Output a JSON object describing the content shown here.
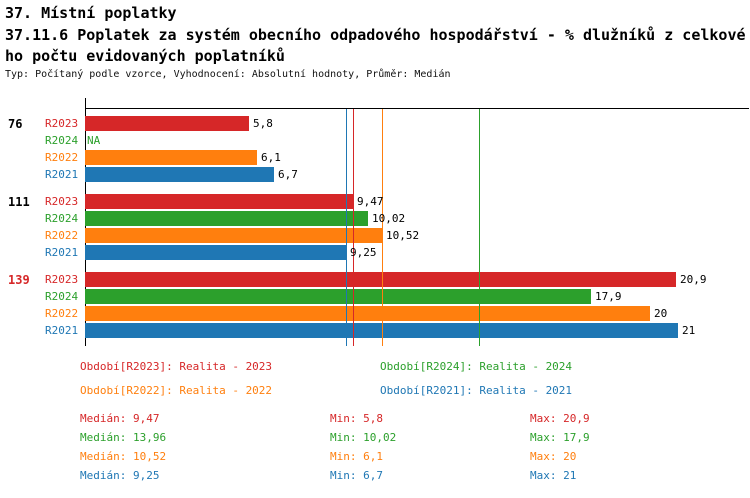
{
  "header": {
    "title": "37. Místní poplatky",
    "subtitle": "37.11.6 Poplatek za systém obecního odpadového hospodářství  - % dlužníků z celkového počtu evidovaných poplatníků",
    "meta": "Typ: Počítaný podle vzorce, Vyhodnocení: Absolutní hodnoty, Průměr: Medián"
  },
  "chart_data": {
    "type": "bar",
    "orientation": "horizontal",
    "xlim": [
      0,
      23.5
    ],
    "grid": "median-lines-only",
    "series_colors": {
      "R2023": "#d62728",
      "R2024": "#2ca02c",
      "R2022": "#ff7f0e",
      "R2021": "#1f77b4"
    },
    "highlight_color": "#d62728",
    "groups": [
      {
        "label": "76",
        "highlight": false,
        "bars": [
          {
            "series": "R2023",
            "value": 5.8,
            "display": "5,8"
          },
          {
            "series": "R2024",
            "value": null,
            "display": "NA"
          },
          {
            "series": "R2022",
            "value": 6.1,
            "display": "6,1"
          },
          {
            "series": "R2021",
            "value": 6.7,
            "display": "6,7"
          }
        ]
      },
      {
        "label": "111",
        "highlight": false,
        "bars": [
          {
            "series": "R2023",
            "value": 9.47,
            "display": "9,47"
          },
          {
            "series": "R2024",
            "value": 10.02,
            "display": "10,02"
          },
          {
            "series": "R2022",
            "value": 10.52,
            "display": "10,52"
          },
          {
            "series": "R2021",
            "value": 9.25,
            "display": "9,25"
          }
        ]
      },
      {
        "label": "139",
        "highlight": true,
        "bars": [
          {
            "series": "R2023",
            "value": 20.9,
            "display": "20,9"
          },
          {
            "series": "R2024",
            "value": 17.9,
            "display": "17,9"
          },
          {
            "series": "R2022",
            "value": 20,
            "display": "20"
          },
          {
            "series": "R2021",
            "value": 21,
            "display": "21"
          }
        ]
      }
    ],
    "median_lines": [
      {
        "series": "R2023",
        "value": 9.47
      },
      {
        "series": "R2024",
        "value": 13.96
      },
      {
        "series": "R2022",
        "value": 10.52
      },
      {
        "series": "R2021",
        "value": 9.25
      }
    ]
  },
  "legend": [
    {
      "series": "R2023",
      "label": "Období[R2023]: Realita - 2023"
    },
    {
      "series": "R2024",
      "label": "Období[R2024]: Realita - 2024"
    },
    {
      "series": "R2022",
      "label": "Období[R2022]: Realita - 2022"
    },
    {
      "series": "R2021",
      "label": "Období[R2021]: Realita - 2021"
    }
  ],
  "stats_labels": {
    "median": "Medián",
    "min": "Min",
    "max": "Max"
  },
  "stats": [
    {
      "series": "R2023",
      "median": "9,47",
      "min": "5,8",
      "max": "20,9"
    },
    {
      "series": "R2024",
      "median": "13,96",
      "min": "10,02",
      "max": "17,9"
    },
    {
      "series": "R2022",
      "median": "10,52",
      "min": "6,1",
      "max": "20"
    },
    {
      "series": "R2021",
      "median": "9,25",
      "min": "6,7",
      "max": "21"
    }
  ]
}
